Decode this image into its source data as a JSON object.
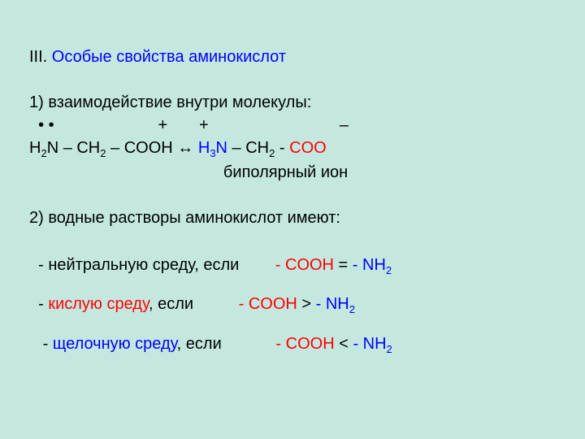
{
  "colors": {
    "background": "#c4e8df",
    "text": "#000000",
    "blue": "#0000ff",
    "red": "#ff0000"
  },
  "font": {
    "family": "Arial",
    "size_pt": 20,
    "sub_size_pt": 13
  },
  "heading": {
    "roman": "III.",
    "title": " Особые свойства аминокислот"
  },
  "item1": {
    "label": "1) взаимодействие внутри молекулы:",
    "charges": "  • •                       +       +                             –",
    "eq": {
      "p1": "H",
      "p2": "N – CH",
      "p3": " – COOH ↔ ",
      "p4": "H",
      "p5": "N",
      "p6": " – CH",
      "p7": " - ",
      "p8": "COO"
    },
    "sub2": "2",
    "sub3": "3",
    "caption": "                                           биполярный ион"
  },
  "item2": {
    "label": "2) водные растворы аминокислот имеют:",
    "neutral": {
      "p1": "  - нейтральную среду, если        ",
      "p2": "- COOH",
      "p3": " = ",
      "p4": "- NH"
    },
    "acidic": {
      "p1": "  - ",
      "p2": "кислую среду",
      "p3": ", если          ",
      "p4": "- COOH",
      "p5": " > ",
      "p6": "- NH"
    },
    "basic": {
      "p1": "   - ",
      "p2": "щелочную среду",
      "p3": ", если            ",
      "p4": "- COOH",
      "p5": " < ",
      "p6": "- NH"
    },
    "sub2": "2"
  }
}
